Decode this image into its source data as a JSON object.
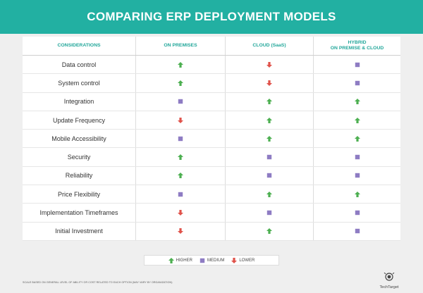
{
  "title": "COMPARING ERP DEPLOYMENT MODELS",
  "columns": [
    "CONSIDERATIONS",
    "ON PREMISES",
    "CLOUD (SaaS)",
    "HYBRID\nON PREMISE & CLOUD"
  ],
  "rows": [
    {
      "label": "Data control",
      "values": [
        "higher",
        "lower",
        "medium"
      ]
    },
    {
      "label": "System control",
      "values": [
        "higher",
        "lower",
        "medium"
      ]
    },
    {
      "label": "Integration",
      "values": [
        "medium",
        "higher",
        "higher"
      ]
    },
    {
      "label": "Update Frequency",
      "values": [
        "lower",
        "higher",
        "higher"
      ]
    },
    {
      "label": "Mobile Accessibility",
      "values": [
        "medium",
        "higher",
        "higher"
      ]
    },
    {
      "label": "Security",
      "values": [
        "higher",
        "medium",
        "medium"
      ]
    },
    {
      "label": "Reliability",
      "values": [
        "higher",
        "medium",
        "medium"
      ]
    },
    {
      "label": "Price Flexibility",
      "values": [
        "medium",
        "higher",
        "higher"
      ]
    },
    {
      "label": "Implementation Timeframes",
      "values": [
        "lower",
        "medium",
        "medium"
      ]
    },
    {
      "label": "Initial Investment",
      "values": [
        "lower",
        "higher",
        "medium"
      ]
    }
  ],
  "legend": [
    {
      "key": "higher",
      "label": "HIGHER"
    },
    {
      "key": "medium",
      "label": "MEDIUM"
    },
    {
      "key": "lower",
      "label": "LOWER"
    }
  ],
  "footnote": "SCALE BASED ON GENERAL LEVEL OF ABILITY OR COST RELATED TO EACH OPTION (MAY VARY BY ORGANIZATION)",
  "brand": "TechTarget",
  "colors": {
    "header_bg": "#22b0a2",
    "column_header_text": "#22a79a",
    "higher": "#4caf50",
    "medium": "#8e7cc3",
    "lower": "#e0524a"
  }
}
